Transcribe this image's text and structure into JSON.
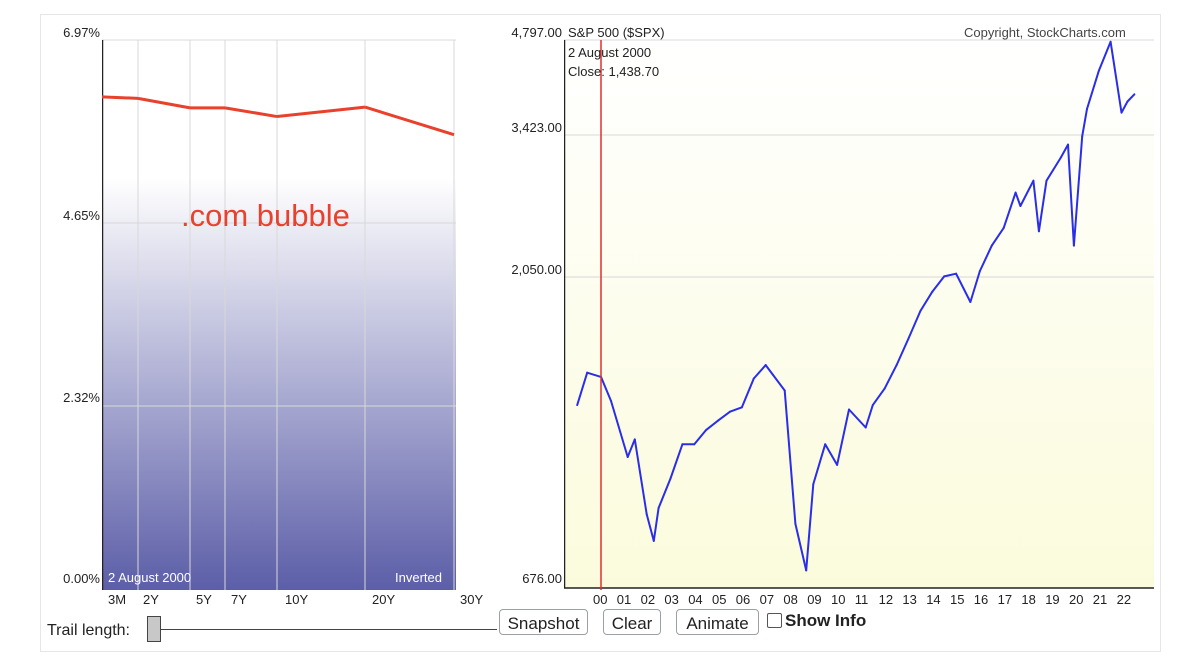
{
  "yield_chart": {
    "y_labels": [
      "6.97%",
      "4.65%",
      "2.32%",
      "0.00%"
    ],
    "date": "2  August 2000",
    "inverted_label": "Inverted",
    "annotation": ".com bubble",
    "x_labels": [
      "3M",
      "2Y",
      "5Y",
      "7Y",
      "10Y",
      "20Y",
      "30Y"
    ]
  },
  "spx_chart": {
    "y_labels": [
      "4,797.00",
      "3,423.00",
      "2,050.00",
      "676.00"
    ],
    "title": "S&P 500 ($SPX)",
    "date": "2  August 2000",
    "close": "Close: 1,438.70",
    "copyright": "Copyright, StockCharts.com",
    "x_labels": [
      "00",
      "01",
      "02",
      "03",
      "04",
      "05",
      "06",
      "07",
      "08",
      "09",
      "10",
      "11",
      "12",
      "13",
      "14",
      "15",
      "16",
      "17",
      "18",
      "19",
      "20",
      "21",
      "22"
    ]
  },
  "controls": {
    "trail_label": "Trail length:",
    "snapshot": "Snapshot",
    "clear": "Clear",
    "animate": "Animate",
    "show_info": "Show Info"
  },
  "colors": {
    "yield_line": "#e8412c",
    "spx_line": "#2a2ee8",
    "cursor_line": "#e03030",
    "annotation": "#e8412c"
  },
  "chart_data": [
    {
      "type": "line",
      "title": "",
      "xlabel": "",
      "ylabel": "",
      "categories": [
        "3M",
        "2Y",
        "5Y",
        "7Y",
        "10Y",
        "20Y",
        "30Y"
      ],
      "values": [
        6.25,
        6.23,
        6.11,
        6.11,
        6.0,
        6.12,
        5.77
      ],
      "ylim": [
        0,
        6.97
      ]
    },
    {
      "type": "line",
      "title": "S&P 500 ($SPX)",
      "xlabel": "",
      "ylabel": "",
      "x": [
        1999.58,
        2000.0,
        2000.58,
        2001.0,
        2001.7,
        2002.0,
        2002.5,
        2002.8,
        2003.0,
        2003.5,
        2004.0,
        2004.5,
        2005.0,
        2005.5,
        2006.0,
        2006.5,
        2007.0,
        2007.5,
        2007.8,
        2008.3,
        2008.75,
        2009.2,
        2009.5,
        2010.0,
        2010.5,
        2011.0,
        2011.7,
        2012.0,
        2012.5,
        2013.0,
        2013.5,
        2014.0,
        2014.5,
        2015.0,
        2015.5,
        2016.1,
        2016.5,
        2017.0,
        2017.5,
        2018.0,
        2018.2,
        2018.75,
        2018.98,
        2019.3,
        2019.9,
        2020.2,
        2020.45,
        2020.8,
        2021.0,
        2021.5,
        2021.99,
        2022.45,
        2022.7,
        2022.99
      ],
      "values": [
        1300,
        1460,
        1438,
        1320,
        1080,
        1150,
        880,
        800,
        900,
        1000,
        1130,
        1130,
        1190,
        1230,
        1270,
        1290,
        1430,
        1500,
        1450,
        1370,
        850,
        720,
        980,
        1130,
        1050,
        1280,
        1200,
        1300,
        1380,
        1500,
        1650,
        1820,
        1950,
        2060,
        2080,
        1880,
        2100,
        2300,
        2450,
        2780,
        2650,
        2900,
        2420,
        2900,
        3150,
        3300,
        2300,
        3400,
        3750,
        4300,
        4766,
        3700,
        3850,
        3950
      ],
      "ylim": [
        676,
        4797
      ]
    }
  ]
}
